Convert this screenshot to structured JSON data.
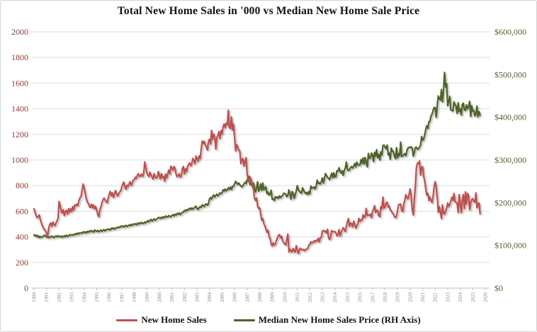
{
  "title": "Total New Home Sales in '000 vs Median New Home Sale Price",
  "chart_data": {
    "type": "line",
    "x_start_year": 1990,
    "points_per_year": 12,
    "x_tick_years": [
      "1990",
      "1991",
      "1992",
      "1993",
      "1994",
      "1995",
      "1996",
      "1997",
      "1998",
      "1999",
      "2000",
      "2001",
      "2002",
      "2003",
      "2004",
      "2005",
      "2006",
      "2007",
      "2008",
      "2009",
      "2010",
      "2011",
      "2012",
      "2013",
      "2014",
      "2015",
      "2016",
      "2017",
      "2018",
      "2019",
      "2020",
      "2021",
      "2022",
      "2023",
      "2024",
      "2025",
      "2026"
    ],
    "grid": "horizontal-only",
    "legend_position": "bottom",
    "left_axis": {
      "min": 0,
      "max": 2000,
      "step": 200,
      "tick_labels": [
        "0",
        "200",
        "400",
        "600",
        "800",
        "1000",
        "1200",
        "1400",
        "1600",
        "1800",
        "2000"
      ],
      "label_color": "#953735"
    },
    "right_axis": {
      "min": 0,
      "max": 600,
      "step": 100,
      "unit": "USD thousands",
      "tick_labels": [
        "$0",
        "$100,000",
        "$200,000",
        "$300,000",
        "$400,000",
        "$500,000",
        "$600,000"
      ],
      "label_color": "#4f6228"
    },
    "series": [
      {
        "name": "New Home Sales",
        "axis": "left",
        "color": "#c0504d",
        "unit": "thousands of homes (SAAR)",
        "values": [
          620,
          591,
          566,
          549,
          560,
          571,
          534,
          509,
          486,
          468,
          456,
          448,
          426,
          405,
          462,
          497,
          508,
          482,
          516,
          500,
          487,
          510,
          522,
          548,
          676,
          639,
          603,
          585,
          612,
          566,
          597,
          608,
          578,
          620,
          593,
          621,
          599,
          636,
          611,
          650,
          641,
          656,
          645,
          683,
          705,
          716,
          764,
          812,
          778,
          740,
          699,
          671,
          662,
          636,
          630,
          655,
          628,
          650,
          617,
          637,
          611,
          571,
          557,
          607,
          637,
          666,
          688,
          702,
          689,
          677,
          665,
          701,
          735,
          756,
          721,
          744,
          708,
          729,
          762,
          739,
          719,
          733,
          751,
          758,
          790,
          812,
          828,
          787,
          772,
          803,
          793,
          814,
          831,
          801,
          822,
          845,
          846,
          866,
          857,
          885,
          893,
          870,
          878,
          890,
          872,
          896,
          985,
          940,
          901,
          881,
          870,
          905,
          884,
          868,
          851,
          893,
          871,
          858,
          865,
          910,
          882,
          851,
          893,
          863,
          872,
          833,
          891,
          861,
          893,
          921,
          890,
          952,
          937,
          920,
          951,
          930,
          889,
          868,
          882,
          893,
          866,
          878,
          932,
          950,
          891,
          932,
          910,
          951,
          962,
          978,
          955,
          972,
          1012,
          998,
          971,
          1031,
          1009,
          991,
          1032,
          1011,
          1083,
          1148,
          1128,
          1146,
          1121,
          1099,
          1078,
          1143,
          1163,
          1125,
          1231,
          1161,
          1201,
          1179,
          1084,
          1170,
          1191,
          1221,
          1167,
          1230,
          1203,
          1262,
          1281,
          1252,
          1288,
          1274,
          1389,
          1255,
          1244,
          1336,
          1234,
          1279,
          1173,
          1070,
          1121,
          1101,
          1076,
          1068,
          972,
          1001,
          1012,
          952,
          993,
          1019,
          891,
          840,
          833,
          864,
          842,
          793,
          771,
          701,
          684,
          704,
          641,
          621,
          627,
          575,
          530,
          542,
          502,
          487,
          460,
          435,
          452,
          400,
          389,
          344,
          329,
          354,
          337,
          345,
          372,
          393,
          413,
          417,
          391,
          405,
          370,
          352,
          345,
          336,
          384,
          422,
          282,
          305,
          290,
          282,
          310,
          292,
          280,
          331,
          301,
          270,
          297,
          312,
          301,
          299,
          302,
          291,
          302,
          305,
          310,
          336,
          339,
          362,
          352,
          358,
          369,
          360,
          373,
          368,
          389,
          361,
          394,
          398,
          443,
          451,
          442,
          446,
          429,
          459,
          390,
          379,
          403,
          450,
          441,
          441,
          442,
          432,
          408,
          419,
          457,
          408,
          433,
          453,
          471,
          458,
          441,
          481,
          521,
          543,
          482,
          508,
          503,
          477,
          522,
          499,
          468,
          487,
          502,
          544,
          521,
          533,
          531,
          572,
          551,
          559,
          622,
          567,
          570,
          568,
          578,
          548,
          599,
          615,
          644,
          590,
          605,
          608,
          563,
          558,
          637,
          618,
          711,
          625,
          633,
          659,
          672,
          633,
          641,
          608,
          604,
          585,
          579,
          557,
          549,
          564,
          607,
          650,
          654,
          656,
          604,
          598,
          661,
          689,
          730,
          708,
          697,
          729,
          774,
          716,
          612,
          570,
          682,
          791,
          939,
          977,
          971,
          993,
          881,
          943,
          948,
          873,
          832,
          772,
          725,
          740,
          683,
          711,
          686,
          668,
          717,
          790,
          831,
          790,
          707,
          591,
          636,
          590,
          543,
          649,
          588,
          577,
          602,
          625,
          664,
          637,
          656,
          679,
          710,
          684,
          739,
          677,
          669,
          661,
          590,
          730,
          661,
          590,
          688,
          730,
          621,
          751,
          657,
          740,
          720,
          611,
          669,
          689,
          699,
          676,
          670,
          743,
          626,
          656,
          664,
          580
        ]
      },
      {
        "name": "Median New Home Sales Price (RH Axis)",
        "axis": "right",
        "color": "#4f6228",
        "unit": "USD thousands",
        "values": [
          125,
          122,
          124,
          120,
          123,
          118,
          121,
          119,
          120,
          122,
          124,
          123,
          119,
          121,
          118,
          120,
          119,
          122,
          120,
          118,
          121,
          122,
          120,
          123,
          121,
          120,
          122,
          119,
          121,
          123,
          120,
          124,
          122,
          121,
          125,
          124,
          125,
          124,
          126,
          125,
          128,
          126,
          129,
          127,
          130,
          129,
          128,
          132,
          130,
          132,
          129,
          133,
          131,
          134,
          132,
          135,
          133,
          131,
          136,
          134,
          133,
          135,
          132,
          134,
          136,
          133,
          135,
          137,
          134,
          136,
          138,
          137,
          138,
          136,
          140,
          139,
          141,
          138,
          140,
          142,
          141,
          143,
          142,
          145,
          144,
          146,
          143,
          145,
          147,
          144,
          146,
          148,
          146,
          149,
          147,
          150,
          149,
          151,
          148,
          152,
          150,
          153,
          151,
          154,
          152,
          151,
          155,
          153,
          156,
          158,
          155,
          159,
          161,
          157,
          160,
          162,
          159,
          161,
          163,
          165,
          165,
          163,
          166,
          164,
          167,
          165,
          169,
          167,
          166,
          170,
          168,
          167,
          170,
          172,
          169,
          173,
          171,
          175,
          173,
          176,
          172,
          175,
          177,
          178,
          182,
          180,
          184,
          182,
          185,
          187,
          184,
          188,
          185,
          187,
          190,
          192,
          186,
          184,
          188,
          191,
          189,
          195,
          193,
          191,
          196,
          197,
          194,
          198,
          209,
          212,
          208,
          215,
          218,
          213,
          217,
          220,
          216,
          219,
          223,
          221,
          223,
          230,
          227,
          232,
          228,
          230,
          235,
          231,
          237,
          231,
          238,
          238,
          244,
          250,
          246,
          243,
          246,
          242,
          239,
          237,
          240,
          244,
          248,
          245,
          254,
          250,
          262,
          242,
          245,
          238,
          246,
          236,
          225,
          234,
          249,
          227,
          232,
          244,
          229,
          246,
          230,
          234,
          237,
          221,
          225,
          218,
          220,
          229,
          208,
          209,
          205,
          214,
          211,
          214,
          210,
          216,
          212,
          215,
          217,
          222,
          222,
          220,
          214,
          217,
          230,
          221,
          208,
          226,
          223,
          210,
          218,
          227,
          240,
          230,
          227,
          224,
          222,
          235,
          229,
          225,
          221,
          224,
          219,
          226,
          221,
          239,
          234,
          235,
          237,
          232,
          237,
          253,
          245,
          247,
          244,
          249,
          258,
          246,
          257,
          268,
          263,
          259,
          257,
          254,
          262,
          269,
          258,
          270,
          260,
          261,
          275,
          274,
          282,
          273,
          269,
          275,
          264,
          276,
          281,
          295,
          278,
          275,
          277,
          282,
          285,
          281,
          285,
          292,
          284,
          295,
          289,
          288,
          288,
          301,
          292,
          305,
          290,
          306,
          294,
          284,
          315,
          304,
          305,
          316,
          312,
          296,
          318,
          309,
          324,
          305,
          313,
          300,
          319,
          312,
          334,
          335,
          331,
          326,
          335,
          312,
          316,
          302,
          328,
          320,
          320,
          309,
          303,
          329,
          305,
          315,
          310,
          342,
          308,
          310,
          312,
          315,
          310,
          322,
          328,
          330,
          329,
          331,
          328,
          309,
          317,
          329,
          330,
          325,
          326,
          330,
          335,
          355,
          346,
          349,
          359,
          372,
          380,
          374,
          390,
          390,
          403,
          407,
          416,
          423,
          423,
          400,
          428,
          450,
          444,
          440,
          465,
          436,
          463,
          505,
          471,
          479,
          427,
          438,
          449,
          417,
          416,
          415,
          436,
          430,
          426,
          409,
          434,
          413,
          420,
          405,
          430,
          433,
          417,
          416,
          429,
          420,
          426,
          437,
          402,
          427,
          414,
          416,
          403,
          407,
          426,
          401,
          413,
          405
        ]
      }
    ],
    "style": {
      "gridline_color": "#dcdcdc",
      "axis_line_color": "#c0c0c0",
      "x_label_color": "#8c8c8c",
      "line_shadow": true
    }
  },
  "legend": {
    "items": [
      {
        "label": "New Home Sales"
      },
      {
        "label": "Median New Home Sales Price (RH Axis)"
      }
    ]
  }
}
